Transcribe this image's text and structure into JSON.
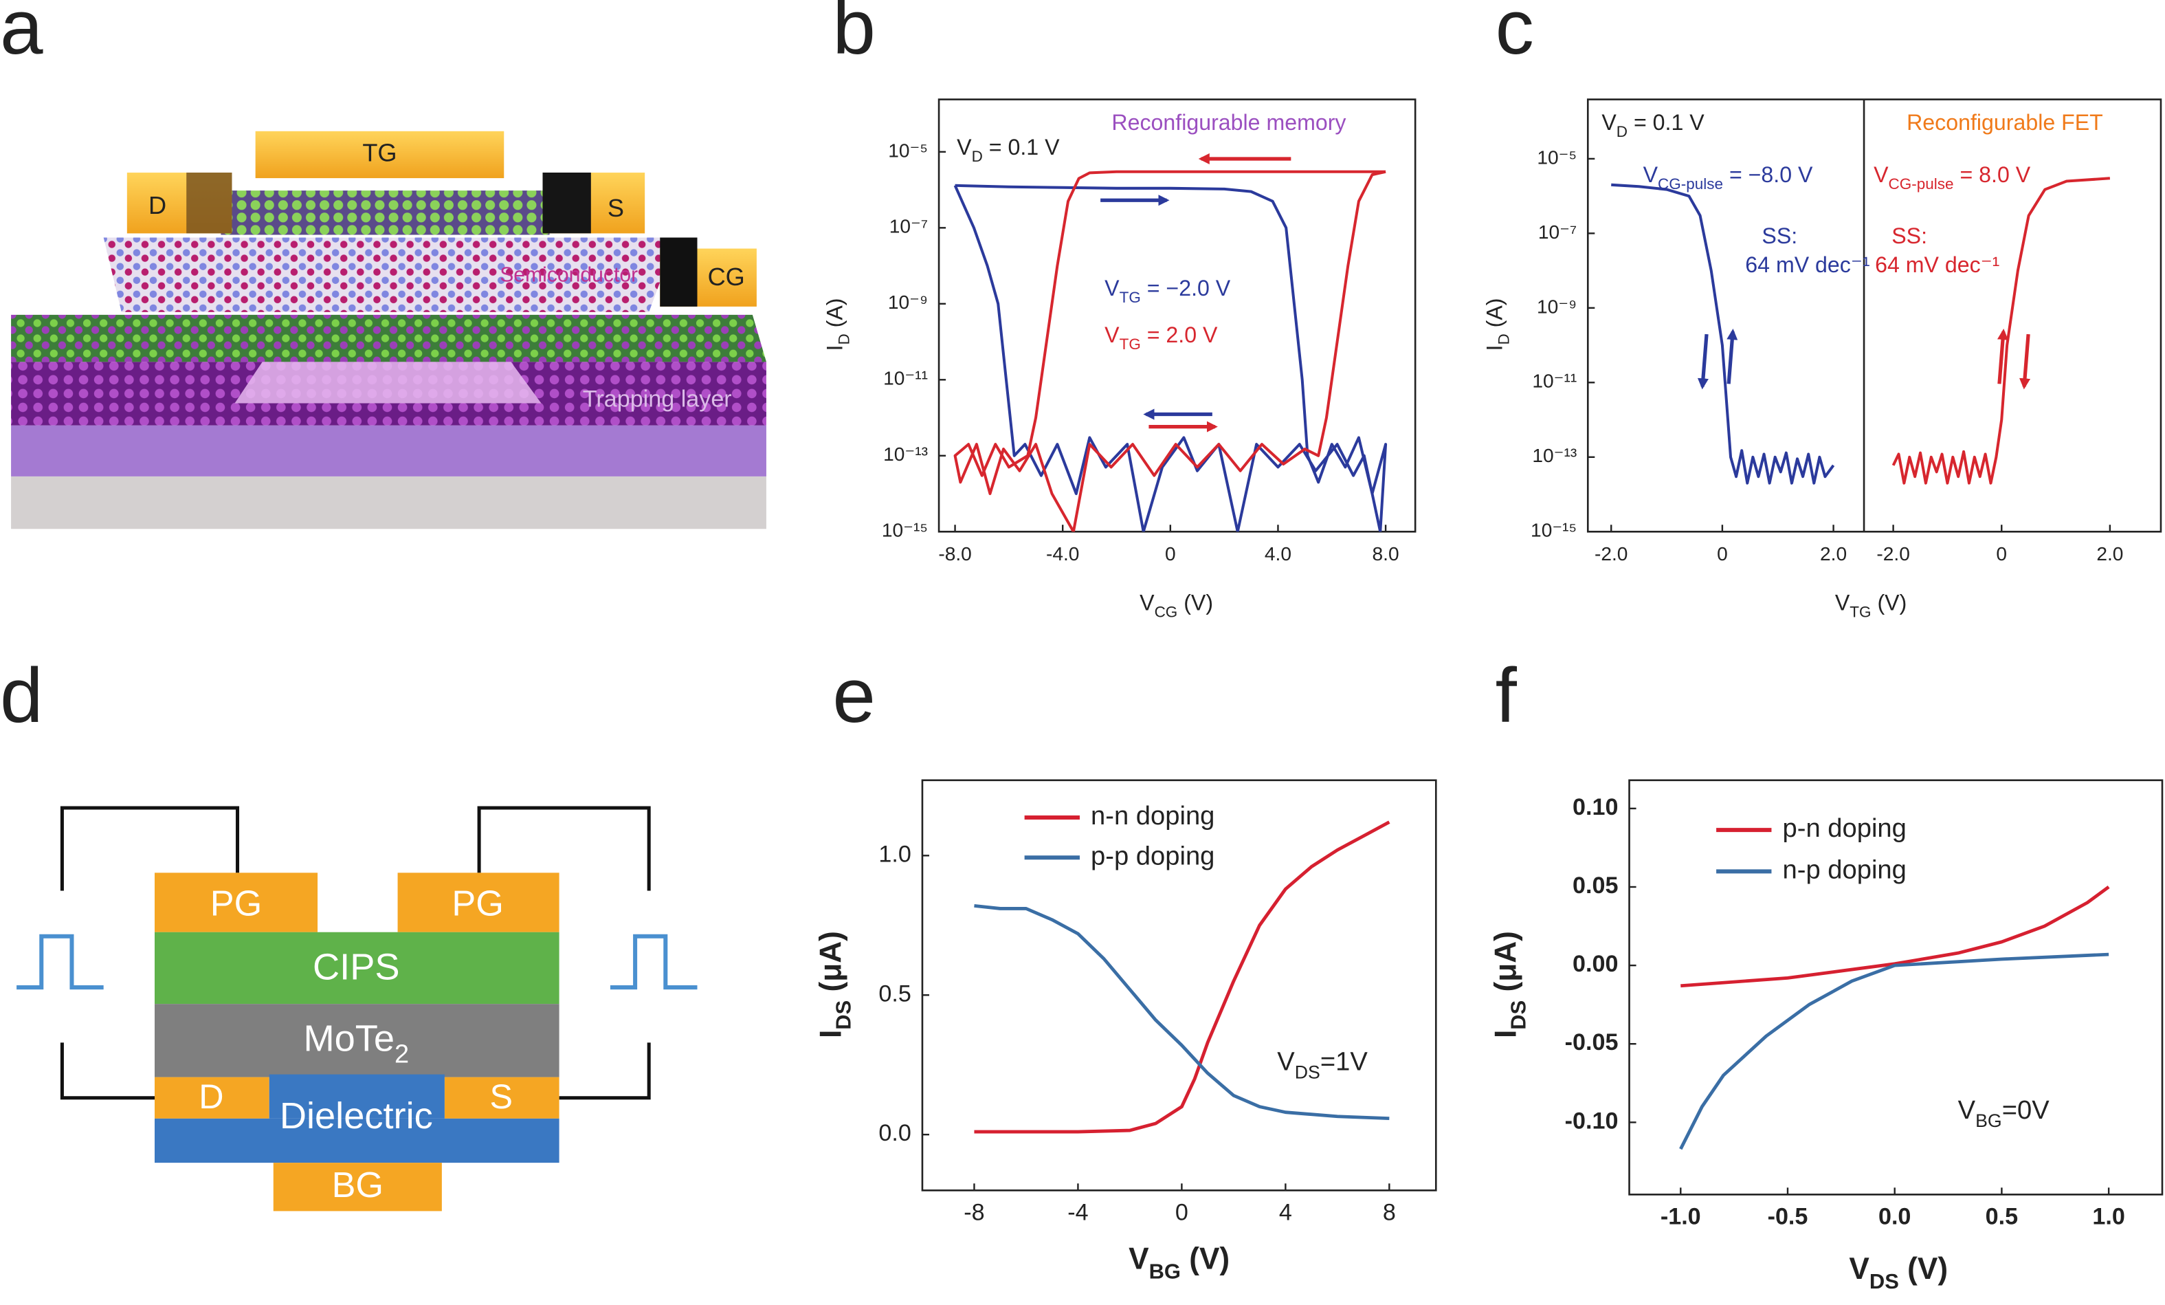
{
  "panel_labels": [
    "a",
    "b",
    "c",
    "d",
    "e",
    "f"
  ],
  "device_a": {
    "top_gate": "TG",
    "drain": "D",
    "source": "S",
    "control_gate": "CG",
    "semiconductor": "Semiconductor",
    "trapping_layer": "Trapping layer"
  },
  "device_d": {
    "gates": [
      "PG",
      "PG"
    ],
    "ferroelectric": "CIPS",
    "channel": [
      "MoTe",
      "2"
    ],
    "drain": "D",
    "dielectric": "Dielectric",
    "source": "S",
    "bottom_gate": "BG"
  },
  "chart_data": [
    {
      "type": "line",
      "log_y": true,
      "xlim": [
        -8.6,
        9.1
      ],
      "ylim": [
        1e-15,
        0.00024
      ],
      "xticks": [
        {
          "value": -8,
          "label": "-8.0"
        },
        {
          "value": -4,
          "label": "-4.0"
        },
        0,
        {
          "value": 4,
          "label": "4.0"
        },
        {
          "value": 8,
          "label": "8.0"
        }
      ],
      "yticks": [
        {
          "value": 1e-15,
          "label": "10⁻¹⁵"
        },
        {
          "value": 1e-13,
          "label": "10⁻¹³"
        },
        {
          "value": 1e-11,
          "label": "10⁻¹¹"
        },
        {
          "value": 1e-09,
          "label": "10⁻⁹"
        },
        {
          "value": 1e-07,
          "label": "10⁻⁷"
        },
        {
          "value": 1e-05,
          "label": "10⁻⁵"
        }
      ],
      "xlabel": [
        "V",
        "CG",
        " (V)"
      ],
      "ylabel": [
        "I",
        "D",
        " (A)"
      ],
      "annotations": [
        {
          "text": [
            "V",
            "D",
            " = 0.1 V"
          ],
          "color": "#222222"
        },
        {
          "text": "Reconfigurable memory",
          "color": "#9b4fc0"
        },
        {
          "text": [
            "V",
            "TG",
            " = −2.0 V"
          ],
          "color": "#2b3a9c"
        },
        {
          "text": [
            "V",
            "TG",
            " = 2.0 V"
          ],
          "color": "#d7262e"
        }
      ],
      "series": [
        {
          "color": "#2b3a9c",
          "x": [
            -8,
            -6,
            -4,
            -2,
            0,
            2,
            3,
            3.8,
            4.3,
            4.6,
            4.9,
            5.1,
            5.5,
            6,
            6.5,
            7,
            7.5,
            8,
            7.8,
            7.2,
            6.8,
            6.2,
            5.4,
            4.8,
            4,
            3.2,
            2.5,
            1.8,
            1,
            0.5,
            -0.3,
            -1,
            -1.6,
            -2.4,
            -3,
            -3.5,
            -4.2,
            -4.8,
            -5.4,
            -5.8,
            -6.1,
            -6.4,
            -6.8,
            -7.3,
            -8
          ],
          "values": [
            1.3e-06,
            1.2e-06,
            1.15e-06,
            1.1e-06,
            1.1e-06,
            1.05e-06,
            9e-07,
            5e-07,
            1e-07,
            1e-09,
            1e-11,
            1e-13,
            2e-14,
            2e-13,
            5e-14,
            3e-13,
            1e-14,
            2e-13,
            1e-15,
            1e-13,
            3e-14,
            2e-13,
            4e-14,
            2e-13,
            5e-14,
            2e-13,
            1e-15,
            2e-13,
            4e-14,
            3e-13,
            5e-14,
            1e-15,
            2e-13,
            5e-14,
            3e-13,
            1e-14,
            2e-13,
            3e-14,
            2e-13,
            1e-13,
            1e-11,
            1e-09,
            1e-08,
            1e-07,
            1.3e-06
          ]
        },
        {
          "color": "#d7262e",
          "x": [
            8,
            6,
            4,
            2,
            0,
            -2,
            -3,
            -3.4,
            -3.8,
            -4.2,
            -4.6,
            -5,
            -5.3,
            -6,
            -6.5,
            -7,
            -7.5,
            -8,
            -7.8,
            -7.2,
            -6.7,
            -6.2,
            -5.6,
            -5,
            -4.4,
            -3.6,
            -3,
            -2.2,
            -1.4,
            -0.6,
            0.2,
            1,
            1.8,
            2.6,
            3.4,
            4.2,
            5,
            5.5,
            5.8,
            6.2,
            6.6,
            7,
            7.5,
            8
          ],
          "values": [
            3e-06,
            3e-06,
            3e-06,
            3e-06,
            3e-06,
            3e-06,
            2.8e-06,
            2e-06,
            5e-07,
            1e-08,
            1e-10,
            1e-12,
            1e-13,
            5e-14,
            2e-13,
            3e-14,
            2e-13,
            1e-13,
            2e-14,
            2e-13,
            1e-14,
            1.5e-13,
            4e-14,
            2e-13,
            1e-14,
            1e-15,
            2e-13,
            5e-14,
            2e-13,
            3e-14,
            2e-13,
            5e-14,
            2e-13,
            4e-14,
            2e-13,
            6e-14,
            1.5e-13,
            1e-13,
            1e-12,
            1e-10,
            1e-08,
            5e-07,
            2.5e-06,
            3e-06
          ]
        }
      ]
    },
    {
      "type": "line",
      "log_y": true,
      "ylim": [
        1e-15,
        0.00039
      ],
      "yticks": [
        {
          "value": 1e-15,
          "label": "10⁻¹⁵"
        },
        {
          "value": 1e-13,
          "label": "10⁻¹³"
        },
        {
          "value": 1e-11,
          "label": "10⁻¹¹"
        },
        {
          "value": 1e-09,
          "label": "10⁻⁹"
        },
        {
          "value": 1e-07,
          "label": "10⁻⁷"
        },
        {
          "value": 1e-05,
          "label": "10⁻⁵"
        }
      ],
      "xlabel": [
        "V",
        "TG",
        " (V)"
      ],
      "ylabel": [
        "I",
        "D",
        " (A)"
      ],
      "annotations": [
        {
          "text": [
            "V",
            "D",
            " = 0.1 V"
          ],
          "color": "#222222"
        },
        {
          "text": "Reconfigurable FET",
          "color": "#f07a1a"
        },
        {
          "text": [
            "V",
            "CG-pulse",
            " = −8.0 V"
          ],
          "color": "#2b3a9c"
        },
        {
          "text": "SS:",
          "color": "#2b3a9c"
        },
        {
          "text": "64 mV dec⁻¹",
          "color": "#2b3a9c"
        },
        {
          "text": [
            "V",
            "CG-pulse",
            " = 8.0 V"
          ],
          "color": "#d7262e"
        },
        {
          "text": "SS:",
          "color": "#d7262e"
        },
        {
          "text": "64 mV dec⁻¹",
          "color": "#d7262e"
        }
      ],
      "panels": [
        {
          "xlim": [
            -2.42,
            2.55
          ],
          "xticks": [
            {
              "value": -2,
              "label": "-2.0"
            },
            0,
            {
              "value": 2,
              "label": "2.0"
            }
          ],
          "series": [
            {
              "color": "#2b3a9c",
              "x": [
                -2,
                -1.5,
                -1,
                -0.6,
                -0.4,
                -0.2,
                0,
                0.1,
                0.15,
                0.25,
                0.35,
                0.45,
                0.55,
                0.65,
                0.75,
                0.85,
                0.95,
                1.05,
                1.15,
                1.25,
                1.35,
                1.45,
                1.55,
                1.65,
                1.75,
                1.85,
                2
              ],
              "values": [
                2e-06,
                1.8e-06,
                1.5e-06,
                1e-06,
                3e-07,
                1e-08,
                1e-10,
                1e-12,
                1e-13,
                3e-14,
                1.5e-13,
                2e-14,
                1e-13,
                3e-14,
                1.2e-13,
                2e-14,
                1e-13,
                4e-14,
                1.3e-13,
                2e-14,
                9e-14,
                3e-14,
                1.2e-13,
                2e-14,
                1e-13,
                3e-14,
                6e-14
              ]
            }
          ]
        },
        {
          "xlim": [
            -2.54,
            2.94
          ],
          "xticks": [
            {
              "value": -2,
              "label": "-2.0"
            },
            0,
            {
              "value": 2,
              "label": "2.0"
            }
          ],
          "series": [
            {
              "color": "#d7262e",
              "x": [
                -2,
                -1.9,
                -1.8,
                -1.7,
                -1.6,
                -1.5,
                -1.4,
                -1.3,
                -1.2,
                -1.1,
                -1,
                -0.9,
                -0.8,
                -0.7,
                -0.6,
                -0.5,
                -0.4,
                -0.3,
                -0.2,
                -0.1,
                0,
                0.1,
                0.3,
                0.5,
                0.8,
                1.2,
                2
              ],
              "values": [
                6e-14,
                1.2e-13,
                2e-14,
                1e-13,
                3e-14,
                1.3e-13,
                2e-14,
                1e-13,
                4e-14,
                1.2e-13,
                2e-14,
                1e-13,
                3e-14,
                1.4e-13,
                2e-14,
                1e-13,
                3e-14,
                1.2e-13,
                2e-14,
                1e-13,
                1e-12,
                1e-10,
                1e-08,
                3e-07,
                1.5e-06,
                2.5e-06,
                3e-06
              ]
            }
          ]
        }
      ]
    },
    {
      "type": "line",
      "log_y": false,
      "xlim": [
        -10,
        9.8
      ],
      "ylim": [
        -0.2,
        1.27
      ],
      "xticks": [
        -8,
        -4,
        0,
        4,
        8
      ],
      "yticks": [
        {
          "value": 0,
          "label": "0.0"
        },
        0.5,
        {
          "value": 1,
          "label": "1.0"
        }
      ],
      "xlabel": [
        "V",
        "BG",
        " (V)"
      ],
      "ylabel": [
        "I",
        "DS",
        " (μA)"
      ],
      "annotations": [
        {
          "text": [
            "V",
            "DS",
            "=1V"
          ],
          "color": "#222222"
        }
      ],
      "series": [
        {
          "name": "n-n doping",
          "color": "#d62030",
          "x": [
            -8,
            -4,
            -2,
            -1,
            0,
            0.5,
            1,
            2,
            3,
            4,
            5,
            6,
            7,
            8
          ],
          "values": [
            0.01,
            0.01,
            0.015,
            0.04,
            0.1,
            0.2,
            0.33,
            0.55,
            0.75,
            0.88,
            0.96,
            1.02,
            1.07,
            1.12
          ]
        },
        {
          "name": "p-p doping",
          "color": "#3a6ea5",
          "x": [
            -8,
            -7,
            -6,
            -5,
            -4,
            -3,
            -2,
            -1,
            0,
            1,
            2,
            3,
            4,
            6,
            8
          ],
          "values": [
            0.82,
            0.81,
            0.81,
            0.77,
            0.72,
            0.63,
            0.52,
            0.41,
            0.32,
            0.22,
            0.14,
            0.1,
            0.08,
            0.065,
            0.058
          ]
        }
      ]
    },
    {
      "type": "line",
      "log_y": false,
      "xlim": [
        -1.24,
        1.25
      ],
      "ylim": [
        -0.146,
        0.118
      ],
      "xticks": [
        {
          "value": -1,
          "label": "-1.0"
        },
        -0.5,
        {
          "value": 0,
          "label": "0.0"
        },
        0.5,
        {
          "value": 1,
          "label": "1.0"
        }
      ],
      "yticks": [
        {
          "value": -0.1,
          "label": "-0.10"
        },
        {
          "value": -0.05,
          "label": "-0.05"
        },
        {
          "value": 0,
          "label": "0.00"
        },
        0.05,
        {
          "value": 0.1,
          "label": "0.10"
        }
      ],
      "xlabel": [
        "V",
        "DS",
        " (V)"
      ],
      "ylabel": [
        "I",
        "DS",
        " (μA)"
      ],
      "annotations": [
        {
          "text": [
            "V",
            "BG",
            "=0V"
          ],
          "color": "#222222"
        }
      ],
      "series": [
        {
          "name": "p-n doping",
          "color": "#d62030",
          "x": [
            -1,
            -0.5,
            0,
            0.3,
            0.5,
            0.7,
            0.9,
            1
          ],
          "values": [
            -0.013,
            -0.008,
            0.001,
            0.008,
            0.015,
            0.025,
            0.04,
            0.05
          ]
        },
        {
          "name": "n-p doping",
          "color": "#3a6ea5",
          "x": [
            -1,
            -0.9,
            -0.8,
            -0.6,
            -0.4,
            -0.2,
            0,
            0.5,
            1
          ],
          "values": [
            -0.117,
            -0.09,
            -0.07,
            -0.045,
            -0.025,
            -0.01,
            0,
            0.004,
            0.007
          ]
        }
      ]
    }
  ]
}
